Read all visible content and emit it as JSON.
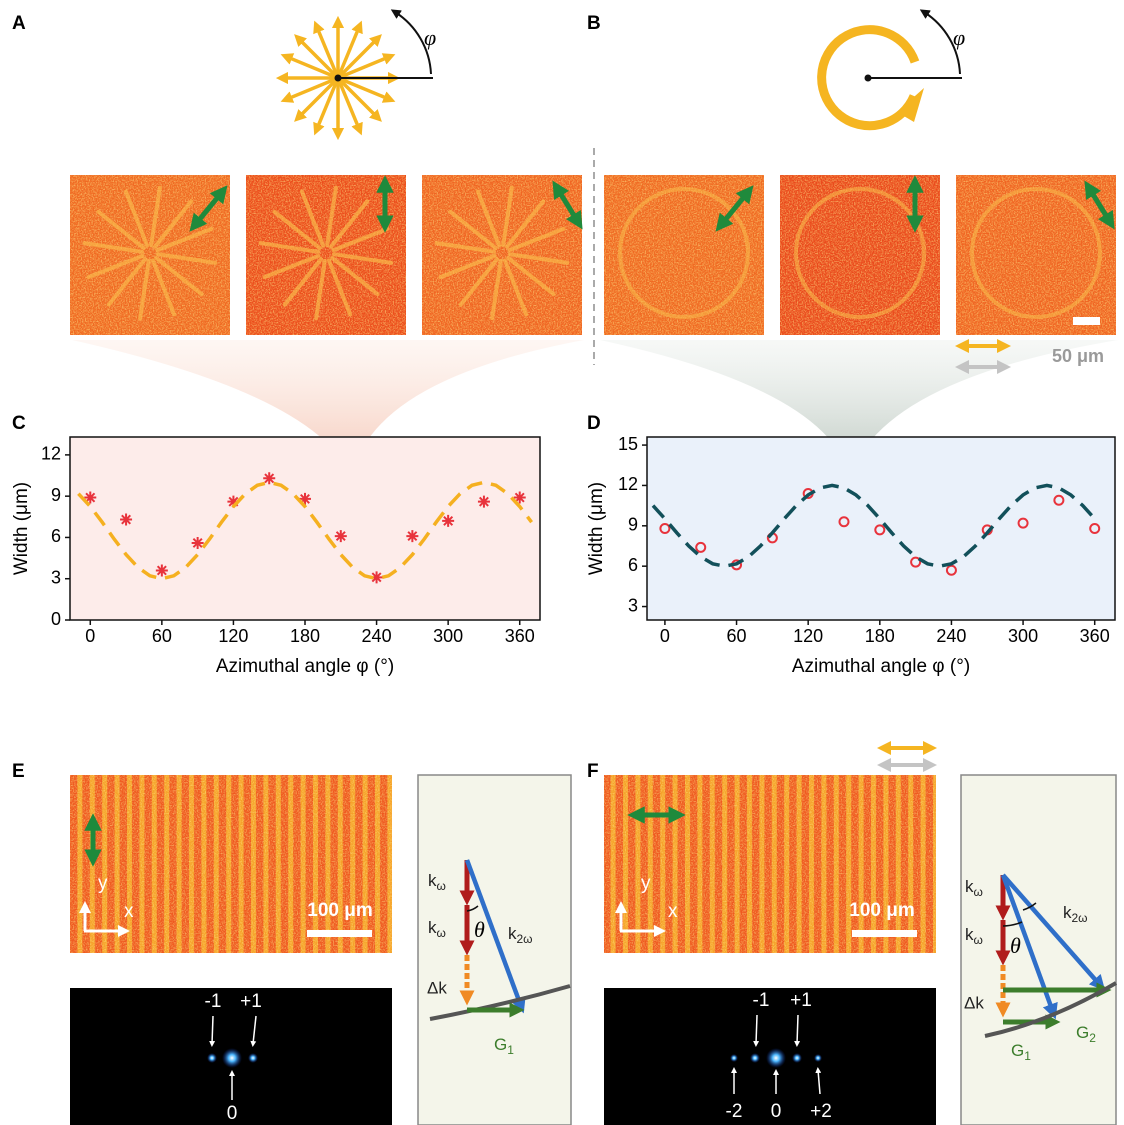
{
  "panel_labels": [
    "A",
    "B",
    "C",
    "D",
    "E",
    "F"
  ],
  "angle_symbols": [
    "φ",
    "φ"
  ],
  "scale_bars": [
    "50 μm",
    "100 μm",
    "100 μm"
  ],
  "axes_labels": {
    "e": [
      "y",
      "x"
    ],
    "f": [
      "y",
      "x"
    ]
  },
  "fft_labels": {
    "e": [
      "-1",
      "+1",
      "0"
    ],
    "f": [
      "-1",
      "+1",
      "-2",
      "0",
      "+2"
    ]
  },
  "diagram_e": {
    "k1": {
      "base": "k",
      "sub": "ω"
    },
    "k2": {
      "base": "k",
      "sub": "ω"
    },
    "theta": "θ",
    "k2w": {
      "base": "k",
      "sub": "2ω"
    },
    "dk": "Δk",
    "g1": {
      "base": "G",
      "sub": "1"
    }
  },
  "diagram_f": {
    "k1": {
      "base": "k",
      "sub": "ω"
    },
    "k2": {
      "base": "k",
      "sub": "ω"
    },
    "theta": "θ",
    "k2w": {
      "base": "k",
      "sub": "2ω"
    },
    "dk": "Δk",
    "g1": {
      "base": "G",
      "sub": "1"
    },
    "g2": {
      "base": "G",
      "sub": "2"
    }
  },
  "chart_data": [
    {
      "type": "scatter",
      "xlabel": "Azimuthal angle φ (°)",
      "ylabel": "Width (μm)",
      "background": "#fdecea",
      "xlim": [
        -17,
        377
      ],
      "ylim": [
        0,
        13.3
      ],
      "xticks": [
        0,
        60,
        120,
        180,
        240,
        300,
        360
      ],
      "yticks": [
        0,
        3,
        6,
        9,
        12
      ],
      "series": [
        {
          "color": "#e8333c",
          "marker": "asterisk",
          "x": [
            0,
            30,
            60,
            90,
            120,
            150,
            180,
            210,
            240,
            270,
            300,
            330,
            360
          ],
          "values": [
            8.9,
            7.3,
            3.6,
            5.6,
            8.6,
            10.3,
            8.8,
            6.1,
            3.1,
            6.1,
            7.2,
            8.6,
            8.9
          ]
        },
        {
          "color": "#f5b020",
          "style": "dashed",
          "x": [
            -10,
            0,
            10,
            20,
            30,
            40,
            50,
            60,
            70,
            80,
            90,
            100,
            110,
            120,
            130,
            140,
            150,
            160,
            170,
            180,
            190,
            200,
            210,
            220,
            230,
            240,
            250,
            260,
            270,
            280,
            290,
            300,
            310,
            320,
            330,
            340,
            350,
            360,
            370
          ],
          "values": [
            9.18,
            8.25,
            7.11,
            5.89,
            4.75,
            3.82,
            3.21,
            3.0,
            3.21,
            3.82,
            4.75,
            5.89,
            7.11,
            8.25,
            9.18,
            9.79,
            10.0,
            9.79,
            9.18,
            8.25,
            7.11,
            5.89,
            4.75,
            3.82,
            3.21,
            3.0,
            3.21,
            3.82,
            4.75,
            5.89,
            7.11,
            8.25,
            9.18,
            9.79,
            10.0,
            9.79,
            9.18,
            8.25,
            7.11
          ]
        }
      ]
    },
    {
      "type": "scatter",
      "xlabel": "Azimuthal angle φ (°)",
      "ylabel": "Width (μm)",
      "background": "#eaf1fa",
      "xlim": [
        -15,
        377
      ],
      "ylim": [
        2,
        15.6
      ],
      "xticks": [
        0,
        60,
        120,
        180,
        240,
        300,
        360
      ],
      "yticks": [
        3,
        6,
        9,
        12,
        15
      ],
      "series": [
        {
          "color": "#e8333c",
          "marker": "circle",
          "x": [
            0,
            30,
            60,
            90,
            120,
            150,
            180,
            210,
            240,
            270,
            300,
            330,
            360
          ],
          "values": [
            8.8,
            7.4,
            6.1,
            8.1,
            11.4,
            9.3,
            8.7,
            6.3,
            5.7,
            8.7,
            9.2,
            10.9,
            8.8
          ]
        },
        {
          "color": "#12505a",
          "style": "dashed",
          "x": [
            -10,
            0,
            10,
            20,
            30,
            40,
            50,
            60,
            70,
            80,
            90,
            100,
            110,
            120,
            130,
            140,
            150,
            160,
            170,
            180,
            190,
            200,
            210,
            220,
            230,
            240,
            250,
            260,
            270,
            280,
            290,
            300,
            310,
            320,
            330,
            340,
            350,
            360
          ],
          "values": [
            10.5,
            9.52,
            8.48,
            7.5,
            6.7,
            6.18,
            6.0,
            6.18,
            6.7,
            7.5,
            8.48,
            9.52,
            10.5,
            11.3,
            11.82,
            12.0,
            11.82,
            11.3,
            10.5,
            9.52,
            8.48,
            7.5,
            6.7,
            6.18,
            6.0,
            6.18,
            6.7,
            7.5,
            8.48,
            9.52,
            10.5,
            11.3,
            11.82,
            12.0,
            11.82,
            11.3,
            10.5,
            9.52
          ]
        }
      ]
    }
  ]
}
